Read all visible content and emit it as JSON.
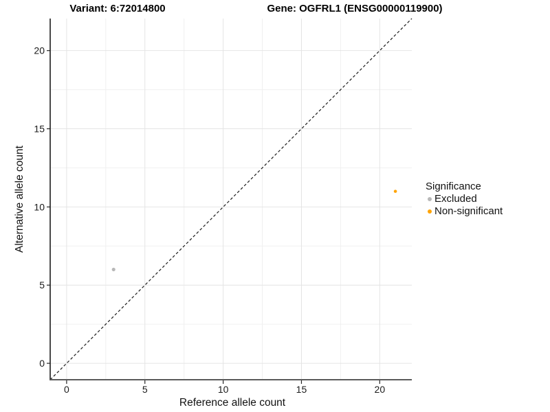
{
  "chart_data": {
    "type": "scatter",
    "title_left": "Variant: 6:72014800",
    "title_right": "Gene: OGFRL1 (ENSG00000119900)",
    "xlabel": "Reference allele count",
    "ylabel": "Alternative allele count",
    "xlim": [
      -1.05,
      22.05
    ],
    "ylim": [
      -1.05,
      22.05
    ],
    "x_ticks": [
      0,
      5,
      10,
      15,
      20
    ],
    "y_ticks": [
      0,
      5,
      10,
      15,
      20
    ],
    "x_minor_gridlines": [
      2.5,
      7.5,
      12.5,
      17.5
    ],
    "y_minor_gridlines": [
      2.5,
      7.5,
      12.5,
      17.5
    ],
    "grid": "on",
    "legend_position": "right",
    "identity_line": {
      "style": "dashed",
      "from": [
        -1.05,
        -1.05
      ],
      "to": [
        22.05,
        22.05
      ],
      "color": "#1A1A1A"
    },
    "legend": {
      "title": "Significance"
    },
    "series": [
      {
        "name": "Excluded",
        "color": "#B8B8B8",
        "point_size": 2.6,
        "points": [
          {
            "x": 3,
            "y": 6
          }
        ]
      },
      {
        "name": "Non-significant",
        "color": "#FFA405",
        "point_size": 2.3,
        "points": [
          {
            "x": 21,
            "y": 11
          }
        ]
      }
    ],
    "colors": {
      "background": "#FFFFFF",
      "grid_major": "#E4E4E4",
      "grid_minor": "#F0F0F0",
      "x_axis_line": "#5A5A5A",
      "y_axis_line": "#1A1A1A",
      "tick_mark": "#222222",
      "tick_label": "#1A1A1A",
      "title": "#000000"
    }
  }
}
